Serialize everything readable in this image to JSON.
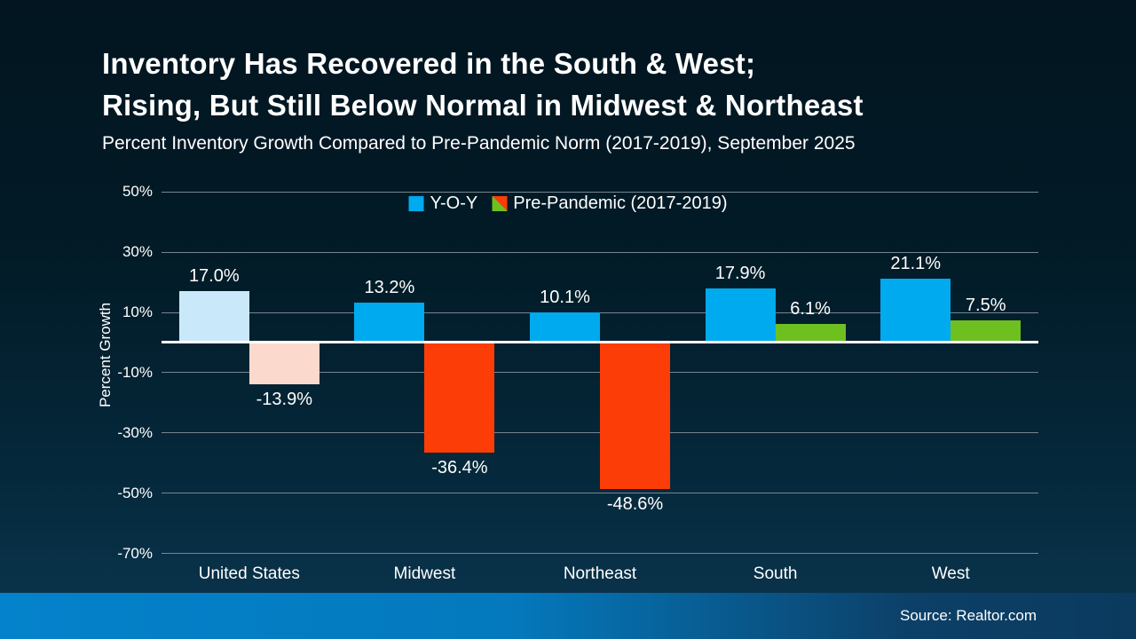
{
  "title": {
    "line1": "Inventory Has Recovered in the South & West;",
    "line2": "Rising, But Still Below Normal in Midwest & Northeast"
  },
  "subtitle": "Percent Inventory Growth Compared to Pre-Pandemic Norm (2017-2019), September 2025",
  "legend": [
    {
      "label": "Y-O-Y",
      "swatch": {
        "type": "solid",
        "color": "#00aaee"
      }
    },
    {
      "label": "Pre-Pandemic (2017-2019)",
      "swatch": {
        "type": "split",
        "colors": [
          "#fc3d08",
          "#6ec021"
        ]
      }
    }
  ],
  "chart_data": {
    "type": "bar",
    "categories": [
      "United States",
      "Midwest",
      "Northeast",
      "South",
      "West"
    ],
    "series": [
      {
        "name": "Y-O-Y",
        "values": [
          17.0,
          13.2,
          10.1,
          17.9,
          21.1
        ],
        "labels": [
          "17.0%",
          "13.2%",
          "10.1%",
          "17.9%",
          "21.1%"
        ],
        "bar_colors": [
          "#c9e9fb",
          "#00aaee",
          "#00aaee",
          "#00aaee",
          "#00aaee"
        ]
      },
      {
        "name": "Pre-Pandemic (2017-2019)",
        "values": [
          -13.9,
          -36.4,
          -48.6,
          6.1,
          7.5
        ],
        "labels": [
          "-13.9%",
          "-36.4%",
          "-48.6%",
          "6.1%",
          "7.5%"
        ],
        "bar_colors": [
          "#fbd9cd",
          "#fc3d08",
          "#fc3d08",
          "#6ec021",
          "#6ec021"
        ]
      }
    ],
    "ylabel": "Percent Growth",
    "yticks": [
      50,
      30,
      10,
      -10,
      -30,
      -50,
      -70
    ],
    "ytick_labels": [
      "50%",
      "30%",
      "10%",
      "-10%",
      "-30%",
      "-50%",
      "-70%"
    ],
    "ylim": [
      -75,
      55
    ],
    "grid": true,
    "legend_position": "top-center"
  },
  "footer": {
    "source": "Source: Realtor.com"
  },
  "colors": {
    "background_top": "#021520",
    "background_bottom": "#0b3650",
    "accent_blue": "#00aaee",
    "accent_blue_light": "#c9e9fb",
    "accent_red": "#fc3d08",
    "accent_red_light": "#fbd9cd",
    "accent_green": "#6ec021",
    "gridline": "#76858f",
    "zero_line": "#ffffff",
    "footer_left": "#0482cb",
    "footer_right": "#0b3a5e",
    "text": "#ffffff"
  }
}
